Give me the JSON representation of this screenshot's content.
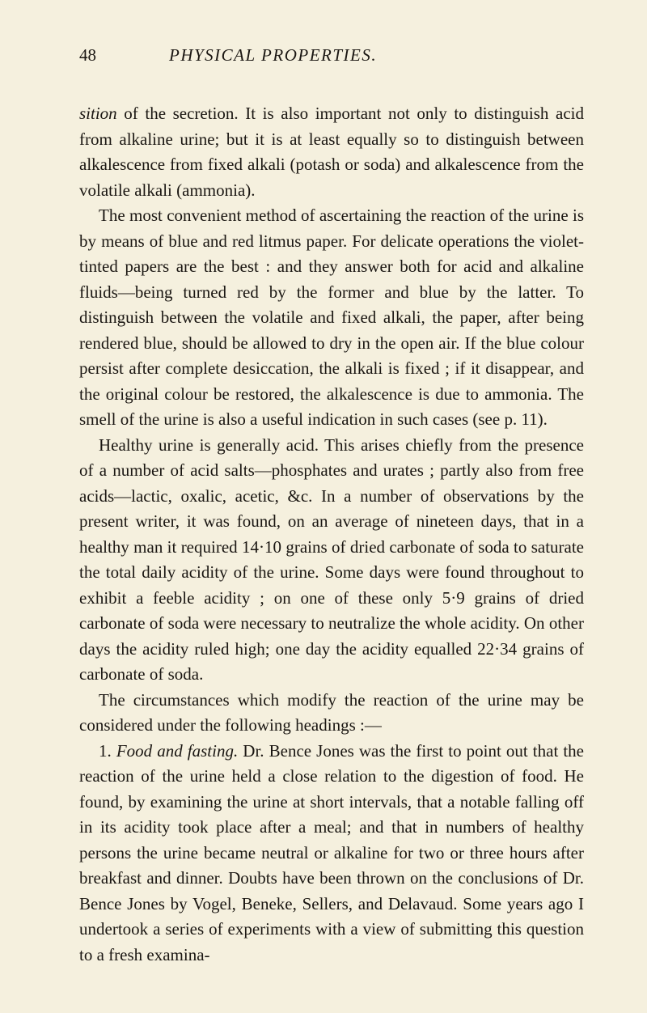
{
  "page": {
    "number": "48",
    "running_title": "PHYSICAL PROPERTIES.",
    "colors": {
      "background": "#f5f0de",
      "text": "#1a1612"
    },
    "typography": {
      "body_fontsize": 21,
      "line_height": 1.5,
      "header_fontsize": 21
    },
    "paragraphs": {
      "p1_start_italic": "sition",
      "p1_rest": " of the secretion. It is also important not only to distinguish acid from alkaline urine; but it is at least equally so to distinguish between alkalescence from fixed alkali (potash or soda) and alkalescence from the volatile alkali (ammonia).",
      "p2": "The most convenient method of ascertaining the reaction of the urine is by means of blue and red litmus paper. For delicate operations the violet-tinted papers are the best : and they answer both for acid and alkaline fluids—being turned red by the former and blue by the latter. To distinguish between the volatile and fixed alkali, the paper, after being rendered blue, should be allowed to dry in the open air. If the blue colour persist after complete desiccation, the alkali is fixed ; if it disappear, and the original colour be restored, the alkalescence is due to ammonia. The smell of the urine is also a useful indication in such cases (see p. 11).",
      "p3": "Healthy urine is generally acid. This arises chiefly from the presence of a number of acid salts—phosphates and urates ; partly also from free acids—lactic, oxalic, acetic, &c. In a number of observations by the present writer, it was found, on an average of nineteen days, that in a healthy man it required 14·10 grains of dried carbonate of soda to saturate the total daily acidity of the urine. Some days were found throughout to exhibit a feeble acidity ; on one of these only 5·9 grains of dried carbonate of soda were necessary to neutralize the whole acidity. On other days the acidity ruled high; one day the acidity equalled 22·34 grains of carbonate of soda.",
      "p4": "The circumstances which modify the reaction of the urine may be considered under the following headings :—",
      "p5_prefix": "1. ",
      "p5_italic": "Food and fasting.",
      "p5_rest": " Dr. Bence Jones was the first to point out that the reaction of the urine held a close relation to the digestion of food. He found, by examining the urine at short intervals, that a notable falling off in its acidity took place after a meal; and that in numbers of healthy persons the urine became neutral or alkaline for two or three hours after breakfast and dinner. Doubts have been thrown on the conclusions of Dr. Bence Jones by Vogel, Beneke, Sellers, and Delavaud. Some years ago I undertook a series of experiments with a view of submitting this question to a fresh examina-"
    }
  }
}
